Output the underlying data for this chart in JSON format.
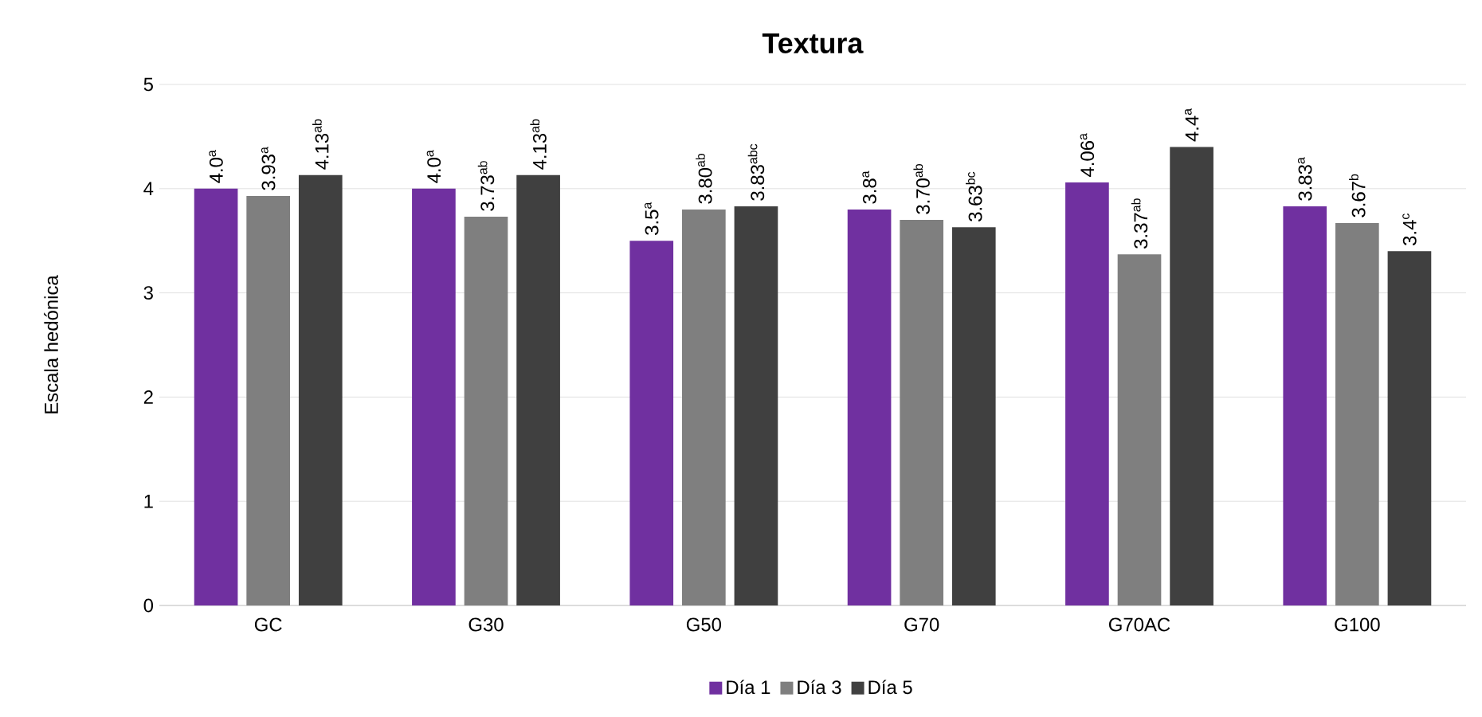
{
  "chart_data": {
    "type": "bar",
    "title": "**Textura**",
    "ylabel": "Escala hedónica",
    "categories": [
      "GC",
      "G30",
      "G50",
      "G70",
      "G70AC",
      "G100"
    ],
    "series": [
      {
        "name": "Día 1",
        "color": "#7030a0",
        "values": [
          4.0,
          4.0,
          3.5,
          3.8,
          4.06,
          3.83
        ],
        "value_labels": [
          "4.0$^{a}$",
          "4.0$^{a}$",
          "3.5$^{a}$",
          "3.8$^{a}$",
          "4.06$^{a}$",
          "3.83$^{a}$"
        ]
      },
      {
        "name": "Día 3",
        "color": "#7f7f7f",
        "values": [
          3.93,
          3.73,
          3.8,
          3.7,
          3.37,
          3.67
        ],
        "value_labels": [
          "3.93$^{a}$",
          "3.73$^{ab}$",
          "3.80$^{ab}$",
          "3.70$^{ab}$",
          "3.37$^{ab}$",
          "3.67$^{b}$"
        ]
      },
      {
        "name": "Día 5",
        "color": "#404040",
        "values": [
          4.13,
          4.13,
          3.83,
          3.63,
          4.4,
          3.4
        ],
        "value_labels": [
          "4.13$^{ab}$",
          "4.13$^{ab}$",
          "3.83$^{abc}$",
          "3.63$^{bc}$",
          "4.4$^{a}$",
          "3.4$^{c}$"
        ]
      }
    ],
    "ylim": [
      0,
      5
    ],
    "yticks": [
      0,
      1,
      2,
      3,
      4,
      5
    ],
    "grid": "y",
    "legend": "bottom"
  }
}
